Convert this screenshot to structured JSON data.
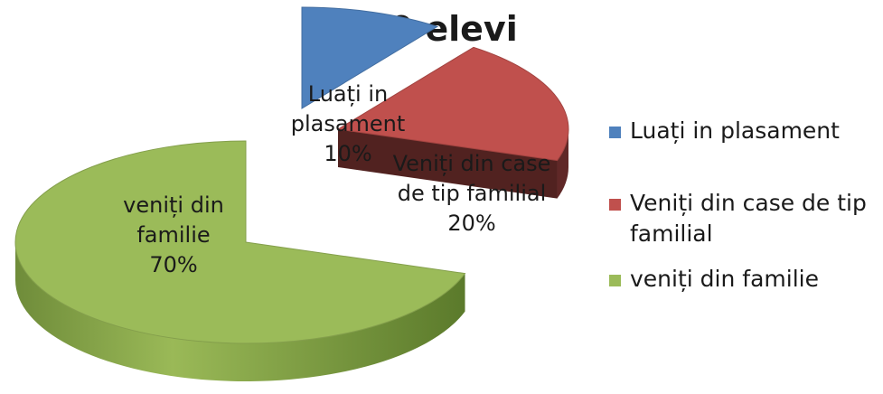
{
  "chart_data": {
    "type": "pie",
    "title": "20 elevi",
    "categories": [
      "Luați in plasament",
      "Veniți din case de tip familial",
      "veniți din familie"
    ],
    "values": [
      10,
      20,
      70
    ],
    "unit": "%",
    "labels": [
      [
        "Luați in",
        "plasament",
        "10%"
      ],
      [
        "Veniți din case",
        "de tip familial",
        "20%"
      ],
      [
        "veniți din",
        "familie",
        "70%"
      ]
    ],
    "colors": [
      "#4f81bd",
      "#c0504d",
      "#9bbb59"
    ],
    "legend_position": "right",
    "style": "3d-exploded"
  }
}
